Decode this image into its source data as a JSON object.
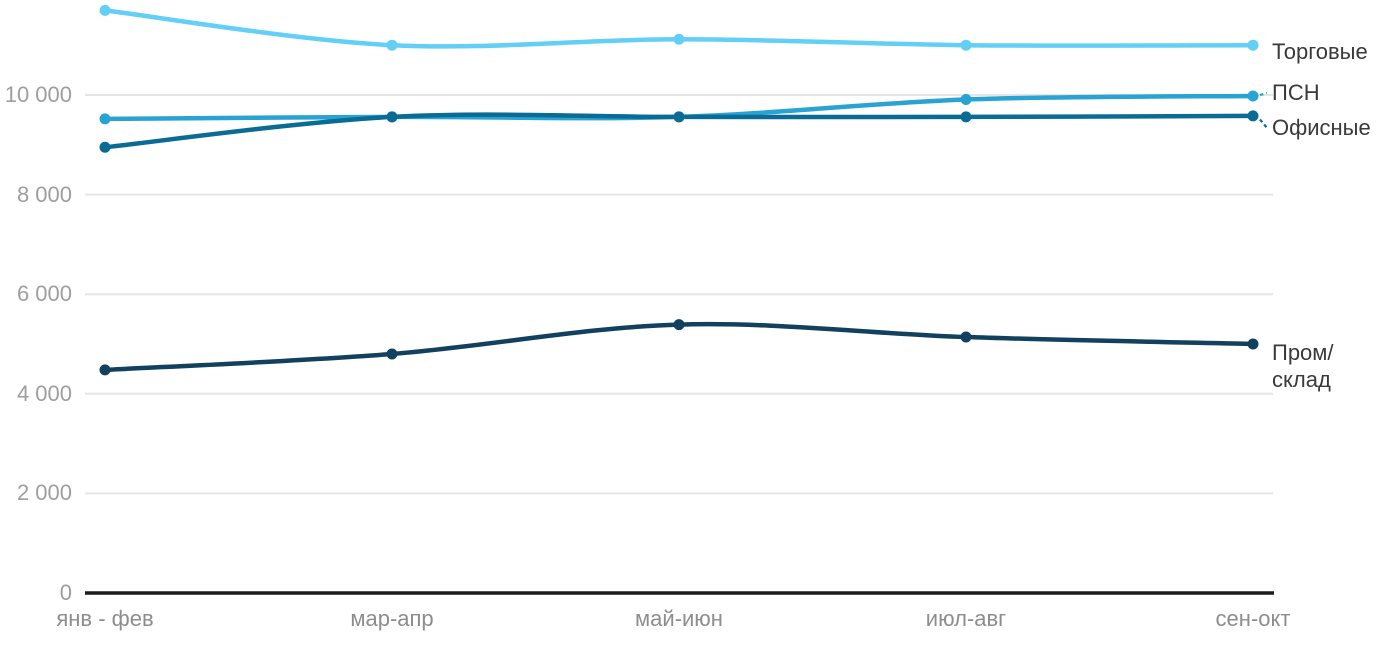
{
  "chart_data": {
    "type": "line",
    "title": "",
    "xlabel": "",
    "ylabel": "",
    "grid": true,
    "legend_position": "labels-at-line-ends-right",
    "categories": [
      "янв - фев",
      "мар-апр",
      "май-июн",
      "июл-авг",
      "сен-окт"
    ],
    "series": [
      {
        "name": "Торговые",
        "label_lines": [
          "Торговые"
        ],
        "color": "#64CFF6",
        "values": [
          11700,
          11000,
          11120,
          11000,
          11000
        ],
        "connector": false
      },
      {
        "name": "ПСН",
        "label_lines": [
          "ПСН"
        ],
        "color": "#29A3D4",
        "values": [
          9520,
          9560,
          9560,
          9910,
          9980
        ],
        "connector": true
      },
      {
        "name": "Офисные",
        "label_lines": [
          "Офисные"
        ],
        "color": "#0A6C95",
        "values": [
          8950,
          9560,
          9560,
          9560,
          9580
        ],
        "connector": true
      },
      {
        "name": "Пром/склад",
        "label_lines": [
          "Пром/",
          "склад"
        ],
        "color": "#12405F",
        "values": [
          4480,
          4800,
          5390,
          5140,
          5000
        ],
        "connector": false
      }
    ],
    "y_ticks": [
      {
        "value": 0,
        "label": "0"
      },
      {
        "value": 2000,
        "label": "2 000"
      },
      {
        "value": 4000,
        "label": "4 000"
      },
      {
        "value": 6000,
        "label": "6 000"
      },
      {
        "value": 8000,
        "label": "8 000"
      },
      {
        "value": 10000,
        "label": "10 000"
      }
    ],
    "ylim": [
      0,
      11900
    ]
  },
  "colors": {
    "background": "#ffffff",
    "grid": "#e6e6e6",
    "axis_line": "#1c1c1c",
    "y_tick_label": "#9e9e9e",
    "x_tick_label": "#8d8d8d",
    "series_label": "#3a3a3a"
  }
}
